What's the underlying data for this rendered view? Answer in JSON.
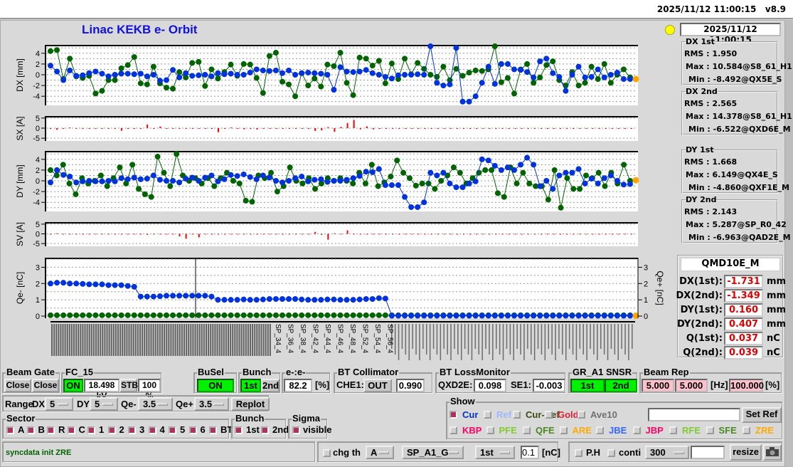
{
  "topbar": {
    "datetime": "2025/11/12 11:00:15",
    "version": "v8.9"
  },
  "title": "Linac KEKB e- Orbit",
  "timestamp": "2025/11/12 11:00:15",
  "colors": {
    "first": "#0033dd",
    "second": "#006400",
    "steer": "#ff0000",
    "ref": "#ffa500",
    "indicator": "#ffff00",
    "on": "#00f000",
    "pink": "#ffc0cb"
  },
  "stats": [
    {
      "title": "DX 1st",
      "rms_label": "RMS :",
      "rms": "1.950",
      "max_label": "Max :",
      "max": "10.584@S8_61_H1",
      "min_label": "Min :",
      "min": "-8.492@QX5E_S"
    },
    {
      "title": "DX 2nd",
      "rms_label": "RMS :",
      "rms": "2.565",
      "max_label": "Max :",
      "max": "14.378@S8_61_H1",
      "min_label": "Min :",
      "min": "-6.522@QXD6E_M"
    },
    {
      "title": "DY 1st",
      "rms_label": "RMS :",
      "rms": "1.668",
      "max_label": "Max :",
      "max": "6.149@QX4E_S",
      "min_label": "Min :",
      "min": "-4.860@QXF1E_M"
    },
    {
      "title": "DY 2nd",
      "rms_label": "RMS :",
      "rms": "2.143",
      "max_label": "Max :",
      "max": "5.287@SP_R0_42",
      "min_label": "Min :",
      "min": "-6.963@QAD2E_M"
    }
  ],
  "bpm": {
    "name": "QMD10E_M",
    "rows": [
      {
        "label": "DX(1st):",
        "value": "-1.731",
        "unit": "mm"
      },
      {
        "label": "DX(2nd):",
        "value": "-1.349",
        "unit": "mm"
      },
      {
        "label": "DY(1st):",
        "value": "0.160",
        "unit": "mm"
      },
      {
        "label": "DY(2nd):",
        "value": "0.407",
        "unit": "mm"
      },
      {
        "label": "Q(1st):",
        "value": "0.037",
        "unit": "nC"
      },
      {
        "label": "Q(2nd):",
        "value": "0.039",
        "unit": "nC"
      }
    ]
  },
  "chart_data": [
    {
      "type": "line",
      "ylabel": "DX [mm]",
      "ylim": [
        -5,
        5
      ],
      "yticks": [
        "4",
        "2",
        "0",
        "-2",
        "-4"
      ],
      "grid": true,
      "series": [
        {
          "values": [
            1.7,
            0.6,
            -1.0,
            0.8,
            -0.2,
            -0.1,
            0.3,
            0.6,
            0.2,
            -0.3,
            0.0,
            0.2,
            0.2,
            0.1,
            0.2,
            -0.3,
            0.0,
            -1.1,
            -1.0,
            0.9,
            -0.5,
            0.3,
            -0.2,
            -0.1,
            0.0,
            -0.3,
            0.3,
            0.1,
            0.2,
            0.0,
            0.0,
            0.4,
            1.0,
            0.8,
            0.7,
            0.8,
            0.3,
            0.8,
            0.0,
            0.3,
            0.4,
            0.3,
            0.2,
            0.0,
            -2.8,
            1.4,
            0.6,
            0.5,
            0.6,
            0.9,
            0.3,
            0.0,
            -0.4,
            -0.7,
            -0.1,
            0.0,
            0.0,
            0.1,
            0.0,
            6.0,
            -1.5,
            -2.0,
            -1.8,
            5.0,
            -5.0,
            -5.0,
            -4.0,
            -1.5,
            1.5,
            -1.7,
            2.0,
            2.0,
            1.0,
            0.9,
            0.5,
            -0.5,
            2.5,
            3.0,
            0.3,
            -0.4,
            -3.0,
            0.0,
            1.5,
            -0.5,
            -0.4,
            1.0,
            -0.5,
            0.0,
            0.4,
            -0.8,
            -0.8
          ]
        },
        {
          "values": [
            4.4,
            4.6,
            -0.8,
            3.0,
            -0.3,
            -0.6,
            -0.2,
            -3.5,
            -3.0,
            -1.0,
            -1.0,
            1.2,
            1.8,
            3.3,
            -1.6,
            -1.8,
            1.5,
            -1.6,
            -2.4,
            -2.6,
            0.5,
            -0.5,
            2.2,
            2.4,
            -2.1,
            1.0,
            -0.7,
            0.5,
            1.9,
            -0.2,
            2.0,
            1.9,
            -0.6,
            -3.4,
            3.5,
            4.1,
            -1.3,
            -1.8,
            -4.0,
            0.3,
            -2.0,
            -0.7,
            -2.2,
            1.9,
            1.6,
            4.1,
            -1.5,
            -3.8,
            3.2,
            3.0,
            1.7,
            2.6,
            -1.6,
            2.1,
            -0.8,
            3.0,
            0.1,
            2.2,
            1.1,
            0.0,
            -0.4,
            1.5,
            -1.0,
            1.1,
            -0.2,
            0.4,
            0.8,
            0.7,
            1.0,
            5.5,
            -1.4,
            -0.6,
            -3.5,
            1.0,
            2.0,
            -1.5,
            -0.5,
            1.8,
            2.5,
            -1.0,
            -2.0,
            0.5,
            -2.0,
            -1.5,
            1.5,
            -0.8,
            2.0,
            -1.5,
            0.0,
            1.0,
            -0.5
          ]
        }
      ],
      "ref_point": -0.8
    },
    {
      "type": "bar",
      "ylabel": "SX [A]",
      "ylim": [
        -5,
        5
      ],
      "yticks": [
        "5",
        "0",
        "-5"
      ],
      "grid": true,
      "values": [
        0,
        -0.8,
        -0.3,
        0.3,
        -0.2,
        0,
        -0.1,
        0,
        -0.3,
        -0.2,
        0,
        -1.3,
        0,
        -0.3,
        0,
        1.8,
        0,
        0.8,
        0,
        0,
        0,
        0,
        0,
        0,
        0,
        0,
        -2,
        0,
        0.3,
        0,
        -0.6,
        0,
        -0.7,
        0,
        0,
        0,
        0,
        0,
        0,
        0,
        0,
        -1.4,
        -1.1,
        0.5,
        -1.8,
        0.6,
        2.5,
        4.1,
        -0.6,
        0.9,
        -0.6,
        0,
        0,
        0,
        0,
        0,
        0,
        0,
        0,
        0,
        0,
        0,
        0,
        0,
        0,
        0,
        0,
        0,
        0,
        0,
        0,
        0,
        0,
        0,
        0,
        0,
        0,
        0,
        0,
        0,
        0,
        0,
        0,
        0,
        0,
        0,
        0,
        0,
        0,
        0,
        0
      ]
    },
    {
      "type": "line",
      "ylabel": "DY [mm]",
      "ylim": [
        -5,
        5
      ],
      "yticks": [
        "4",
        "2",
        "0",
        "-2",
        "-4"
      ],
      "grid": true,
      "series": [
        {
          "values": [
            -0.3,
            2.0,
            1.1,
            0.8,
            -0.3,
            -0.1,
            0.0,
            -0.1,
            -0.1,
            0.0,
            -0.1,
            0.5,
            0.3,
            0.6,
            0.3,
            0.4,
            1.0,
            0.2,
            0.0,
            0.0,
            -0.3,
            0.4,
            0.6,
            0.0,
            0.6,
            1.0,
            -0.1,
            0.3,
            1.1,
            0.9,
            1.2,
            0.7,
            0.3,
            1.0,
            0.6,
            0.0,
            -0.3,
            0.0,
            0.5,
            0.8,
            -0.1,
            0.2,
            0.3,
            -0.2,
            0.0,
            0.0,
            0.2,
            0.5,
            0.9,
            1.7,
            1.6,
            2.2,
            -0.8,
            -0.8,
            -0.8,
            -3.0,
            -4.9,
            -4.9,
            -4.0,
            1.5,
            1.0,
            1.5,
            -0.5,
            -1.2,
            -1.2,
            -0.5,
            -0.1,
            4.0,
            3.8,
            2.8,
            2.0,
            2.5,
            2.0,
            3.0,
            4.3,
            3.0,
            -1.0,
            0.0,
            -1.5,
            1.0,
            1.5,
            1.5,
            2.2,
            -0.5,
            0.4,
            -0.5,
            0.5,
            1.0,
            0.0,
            -0.7,
            -0.6
          ]
        },
        {
          "values": [
            2.0,
            1.0,
            3.0,
            -0.5,
            -2.5,
            0.5,
            -0.5,
            0.0,
            1.0,
            -1.0,
            0.5,
            2.5,
            -0.5,
            3.0,
            -1.5,
            -2.5,
            -3.0,
            4.5,
            1.5,
            -1.0,
            5.0,
            1.0,
            0.0,
            0.5,
            -0.5,
            0.5,
            -1.0,
            0.5,
            1.5,
            0.0,
            -0.5,
            -3.7,
            -3.9,
            1.0,
            0.5,
            1.5,
            -2.0,
            -1.0,
            2.5,
            0.0,
            -0.5,
            0.5,
            -1.5,
            -0.5,
            0.5,
            0.0,
            0.5,
            0.0,
            -0.5,
            1.5,
            -0.5,
            3.0,
            -1.0,
            -0.3,
            0.8,
            3.8,
            1.5,
            0.5,
            -0.9,
            -0.5,
            -0.5,
            -1.5,
            0.0,
            1.0,
            2.5,
            1.5,
            -0.5,
            0.5,
            1.5,
            2.0,
            2.0,
            -2.3,
            -3.0,
            2.5,
            -0.5,
            1.5,
            -0.5,
            -1.0,
            -1.0,
            -3.5,
            2.0,
            -5.0,
            0.5,
            -1.5,
            -1.5,
            1.0,
            0.5,
            1.5,
            -1.0,
            1.5,
            -0.5,
            3.0,
            0.0
          ]
        }
      ],
      "ref_point": 0.1
    },
    {
      "type": "bar",
      "ylabel": "SV [A]",
      "ylim": [
        -5,
        5
      ],
      "yticks": [
        "5",
        "0",
        "-5"
      ],
      "grid": true,
      "values": [
        0,
        0.3,
        0,
        -0.2,
        0,
        -0.2,
        0,
        0,
        -0.2,
        0,
        -0.3,
        0,
        -0.3,
        0,
        0,
        -0.5,
        0,
        -0.2,
        -0.4,
        0,
        -1.3,
        -2.5,
        0,
        -1.8,
        0,
        0,
        0,
        0,
        0,
        0,
        0,
        0,
        0,
        0,
        0,
        0,
        0,
        0,
        0,
        0,
        0,
        1.0,
        -0.5,
        -3.0,
        0.3,
        0,
        1.8,
        0,
        0,
        0,
        0,
        0,
        0,
        0,
        0,
        0,
        0,
        0,
        0,
        0,
        0,
        0,
        0,
        0,
        0,
        0,
        0,
        0,
        0,
        0,
        0,
        0,
        0,
        0,
        0,
        0,
        0,
        0,
        0,
        0,
        0,
        0,
        0,
        0,
        0,
        0,
        0,
        0,
        0,
        0,
        0
      ]
    },
    {
      "type": "line",
      "ylabel": "Qe- [nC]",
      "ylabel_right": "Qe+ [nC]",
      "ylim": [
        0,
        3.5
      ],
      "yticks": [
        "3",
        "2",
        "1",
        "0"
      ],
      "yticks_right": [
        "3",
        "2",
        "1",
        "0"
      ],
      "grid": true,
      "series": [
        {
          "values": [
            2.0,
            2.05,
            2.05,
            2.0,
            2.0,
            1.98,
            1.95,
            1.95,
            1.95,
            1.9,
            1.9,
            1.9,
            1.85,
            1.8,
            1.2,
            1.2,
            1.2,
            1.22,
            1.25,
            1.25,
            1.25,
            1.25,
            1.25,
            1.25,
            1.25,
            1.2,
            1.0,
            1.0,
            1.0,
            1.0,
            1.02,
            1.0,
            1.0,
            1.02,
            1.05,
            1.05,
            1.05,
            1.05,
            1.05,
            1.02,
            1.0,
            1.0,
            1.0,
            1.02,
            1.02,
            1.0,
            1.0,
            1.0,
            1.02,
            1.05,
            1.05,
            1.1,
            1.08,
            0.02,
            0.02,
            0.02,
            0.02,
            0.02,
            0.02,
            0.02,
            0.02,
            0.02,
            0.02,
            0.02,
            0.02,
            0.02,
            0.02,
            0.02,
            0.02,
            0.02,
            0.02,
            0.02,
            0.02,
            0.02,
            0.02,
            0.02,
            0.02,
            0.02,
            0.02,
            0.02,
            0.02,
            0.02,
            0.02,
            0.02,
            0.02,
            0.02,
            0.02,
            0.02,
            0.02,
            0.02,
            0.02
          ]
        },
        {
          "values": [
            0.05,
            0.05,
            0.05,
            0.05,
            0.05,
            0.05,
            0.05,
            0.05,
            0.05,
            0.05,
            0.05,
            0.05,
            0.05,
            0.05,
            0.05,
            0.05,
            0.05,
            0.05,
            0.05,
            0.05,
            0.05,
            0.05,
            0.05,
            0.05,
            0.05,
            0.05,
            0.05,
            0.05,
            0.05,
            0.05,
            0.05,
            0.05,
            0.05,
            0.05,
            0.05,
            0.05,
            0.05,
            0.05,
            0.05,
            0.05,
            0.05,
            0.05,
            0.05,
            0.05,
            0.05,
            0.05,
            0.05,
            0.05,
            0.05,
            0.05,
            0.05,
            0.05,
            0.05,
            0.05,
            0.05,
            0.05,
            0.05,
            0.05,
            0.05,
            0.05,
            0.05,
            0.05,
            0.05,
            0.05,
            0.05,
            0.05,
            0.05,
            0.05,
            0.05,
            0.05,
            0.05,
            0.05,
            0.05,
            0.05,
            0.05,
            0.05,
            0.05,
            0.05,
            0.05,
            0.05,
            0.05,
            0.05,
            0.05,
            0.05,
            0.05,
            0.05,
            0.05,
            0.05,
            0.05,
            0.05,
            0.05
          ]
        }
      ],
      "ref_point": 0.02,
      "xticks": [
        "SP_34_4",
        "SP_36_4",
        "SP_38_4",
        "SP_42_4",
        "SP_44_4",
        "SP_46_4",
        "SP_48_4",
        "SP_52_4",
        "SP_54_4",
        "SP_56_4"
      ]
    }
  ],
  "beam_gate": {
    "title": "Beam Gate",
    "btn1": "Close",
    "btn2": "Close"
  },
  "fc15": {
    "title": "FC_15",
    "state": "ON",
    "voltage": "18.498 kV",
    "stb": "STB",
    "percent": "100 %"
  },
  "busel": {
    "title": "BuSel",
    "state": "ON"
  },
  "bunch_top": {
    "title": "Bunch",
    "first": "1st",
    "second": "2nd"
  },
  "ee": {
    "title": "e-:e-",
    "value": "82.2",
    "unit": "[%]"
  },
  "collimator": {
    "title": "BT Collimator",
    "label": "CHE1:",
    "state": "OUT",
    "value": "0.990"
  },
  "loss": {
    "title": "BT LossMonitor",
    "label1": "QXD2E:",
    "value1": "0.098",
    "label2": "SE1:",
    "value2": "-0.003"
  },
  "snsr": {
    "title": "GR_A1  SNSR",
    "first": "1st",
    "second": "2nd"
  },
  "rep": {
    "title": "Beam Rep",
    "v1": "5.000",
    "v2": "5.000",
    "hz": "[Hz]",
    "pct": "100.000",
    "pct_unit": "[%]"
  },
  "range": {
    "label": "Range",
    "dx_label": "DX",
    "dx": "5",
    "dy_label": "DY",
    "dy": "5",
    "qm_label": "Qe-",
    "qm": "3.5",
    "qp_label": "Qe+",
    "qp": "3.5",
    "replot": "Replot"
  },
  "sector": {
    "title": "Sector",
    "items": [
      "A",
      "B",
      "R",
      "C",
      "1",
      "2",
      "3",
      "4",
      "5",
      "6",
      "BT"
    ]
  },
  "bunch": {
    "title": "Bunch",
    "items": [
      "1st",
      "2nd"
    ]
  },
  "sigma": {
    "title": "Sigma",
    "item": "visible"
  },
  "show": {
    "title": "Show",
    "row1": [
      {
        "label": "Cur",
        "color": "#0033cc",
        "checked": true
      },
      {
        "label": "Ref",
        "color": "#a0b8ff",
        "checked": false
      },
      {
        "label": "Cur-Ref",
        "color": "#3a4a10",
        "checked": false
      },
      {
        "label": "Gold",
        "color": "#dd2233",
        "checked": false
      },
      {
        "label": "Ave10",
        "color": "#707070",
        "checked": false
      }
    ],
    "row2": [
      {
        "label": "KBP",
        "color": "#ff0066"
      },
      {
        "label": "PFE",
        "color": "#80cc30"
      },
      {
        "label": "QFE",
        "color": "#4a8a20"
      },
      {
        "label": "ARE",
        "color": "#ffaa00"
      },
      {
        "label": "JBE",
        "color": "#3366ff"
      },
      {
        "label": "JBP",
        "color": "#ff0066"
      },
      {
        "label": "RFE",
        "color": "#80cc30"
      },
      {
        "label": "SFE",
        "color": "#4a8a20"
      },
      {
        "label": "ZRE",
        "color": "#ffaa00"
      }
    ],
    "ref_input": "",
    "set_ref": "Set Ref"
  },
  "status": "syncdata init ZRE",
  "chg": {
    "label": "chg th",
    "sector": "A",
    "bpm": "SP_A1_G",
    "bunch": "1st",
    "value": "0.1",
    "unit": "[nC]"
  },
  "ph": {
    "ph_label": "P.H",
    "conti_label": "conti",
    "count": "300",
    "input": "",
    "resize": "resize"
  }
}
